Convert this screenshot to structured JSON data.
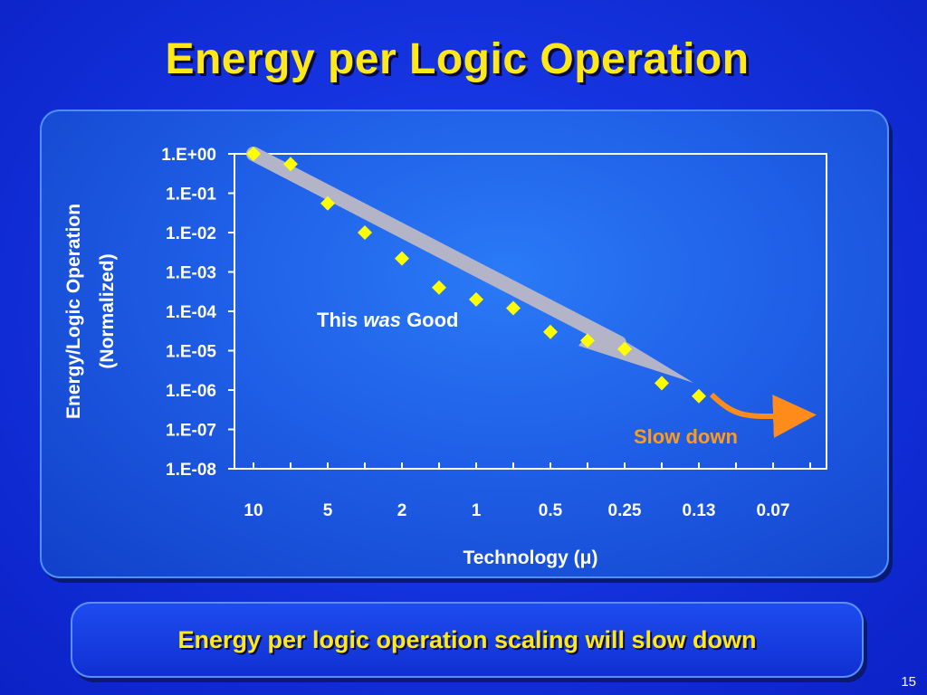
{
  "slide": {
    "title": "Energy per Logic Operation",
    "caption": "Energy per logic operation scaling will slow down",
    "page_number": "15"
  },
  "colors": {
    "title": "#ffe81a",
    "marker": "#ffff00",
    "trend_arrow": "#b4b4c8",
    "slow_down": "#ff8c1a"
  },
  "chart_data": {
    "type": "scatter",
    "title": "",
    "xlabel": "Technology (μ)",
    "ylabel": "Energy/Logic Operation (Normalized)",
    "ylabel_lines": [
      "Energy/Logic Operation",
      "(Normalized)"
    ],
    "x_scale": "categorical-log",
    "x_ticks": [
      "10",
      "5",
      "2",
      "1",
      "0.5",
      "0.25",
      "0.13",
      "0.07"
    ],
    "y_scale": "log",
    "ylim": [
      1e-08,
      1
    ],
    "y_ticks": [
      "1.E+00",
      "1.E-01",
      "1.E-02",
      "1.E-03",
      "1.E-04",
      "1.E-05",
      "1.E-06",
      "1.E-07",
      "1.E-08"
    ],
    "grid": false,
    "series": [
      {
        "marker": "diamond",
        "points": [
          {
            "x_pos": 0.0,
            "y": 1.0
          },
          {
            "x_pos": 0.5,
            "y": 0.55
          },
          {
            "x_pos": 1.0,
            "y": 0.055
          },
          {
            "x_pos": 1.5,
            "y": 0.01
          },
          {
            "x_pos": 2.0,
            "y": 0.0022
          },
          {
            "x_pos": 2.5,
            "y": 0.0004
          },
          {
            "x_pos": 3.0,
            "y": 0.0002
          },
          {
            "x_pos": 3.5,
            "y": 0.00012
          },
          {
            "x_pos": 4.0,
            "y": 3e-05
          },
          {
            "x_pos": 4.5,
            "y": 1.8e-05
          },
          {
            "x_pos": 5.0,
            "y": 1.1e-05
          },
          {
            "x_pos": 5.5,
            "y": 1.5e-06
          },
          {
            "x_pos": 6.0,
            "y": 7e-07
          }
        ]
      }
    ],
    "annotations": [
      {
        "text_plain": "This ",
        "text_italic": "was",
        "text_tail": " Good"
      },
      {
        "text": "Slow down"
      }
    ]
  }
}
